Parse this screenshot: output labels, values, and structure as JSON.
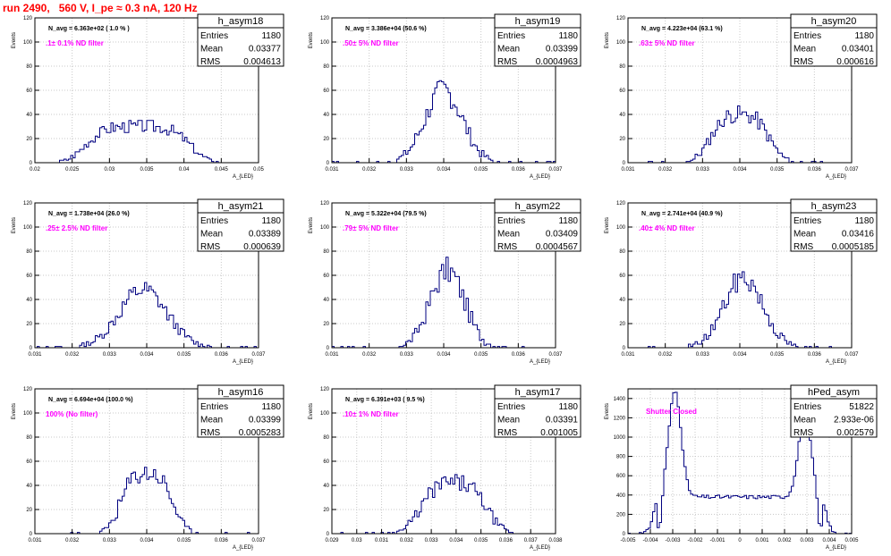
{
  "title": "run 2490,   560 V, I_pe ≈ 0.3 nA, 120 Hz",
  "colors": {
    "title": "#ff0000",
    "annotation": "#ff00ff",
    "histogram": "#000080",
    "grid": "#c8c8c8"
  },
  "stats_labels": {
    "entries": "Entries",
    "mean": "Mean",
    "rms": "RMS"
  },
  "chart_data": [
    {
      "type": "histogram",
      "name": "h_asym18",
      "navg": "N_avg = 6.363e+02 ( 1.0 % )",
      "filter": ".1± 0.1% ND filter",
      "entries": "1180",
      "mean": "0.03377",
      "rms": "0.004613",
      "xlabel": "A_{LED}",
      "ylabel": "Events",
      "xlim": [
        0.02,
        0.05
      ],
      "ylim": [
        0,
        120
      ],
      "xticks": [
        "0.02",
        "0.025",
        "0.03",
        "0.035",
        "0.04",
        "0.045",
        "0.05"
      ],
      "yticks": [
        "0",
        "20",
        "40",
        "60",
        "80",
        "100",
        "120"
      ],
      "bins": 100,
      "center": 0.0338,
      "sigma": 0.0046,
      "peak": 30,
      "shape": "flat",
      "seed": 3
    },
    {
      "type": "histogram",
      "name": "h_asym19",
      "navg": "N_avg = 3.386e+04 (50.6 %)",
      "filter": ".50± 5% ND filter",
      "entries": "1180",
      "mean": "0.03399",
      "rms": "0.0004963",
      "xlabel": "A_{LED}",
      "ylabel": "Events",
      "xlim": [
        0.031,
        0.037
      ],
      "ylim": [
        0,
        120
      ],
      "xticks": [
        "0.031",
        "0.032",
        "0.033",
        "0.034",
        "0.035",
        "0.036",
        "0.037"
      ],
      "yticks": [
        "0",
        "20",
        "40",
        "60",
        "80",
        "100",
        "120"
      ],
      "bins": 100,
      "center": 0.034,
      "sigma": 0.0005,
      "peak": 60,
      "shape": "gauss",
      "seed": 7
    },
    {
      "type": "histogram",
      "name": "h_asym20",
      "navg": "N_avg = 4.223e+04 (63.1 %)",
      "filter": ".63± 5% ND filter",
      "entries": "1180",
      "mean": "0.03401",
      "rms": "0.000616",
      "xlabel": "A_{LED}",
      "ylabel": "Events",
      "xlim": [
        0.031,
        0.037
      ],
      "ylim": [
        0,
        120
      ],
      "xticks": [
        "0.031",
        "0.032",
        "0.033",
        "0.034",
        "0.035",
        "0.036",
        "0.037"
      ],
      "yticks": [
        "0",
        "20",
        "40",
        "60",
        "80",
        "100",
        "120"
      ],
      "bins": 100,
      "center": 0.034,
      "sigma": 0.0006,
      "peak": 40,
      "shape": "flatish",
      "seed": 11
    },
    {
      "type": "histogram",
      "name": "h_asym21",
      "navg": "N_avg = 1.738e+04 (26.0 %)",
      "filter": ".25± 2.5% ND filter",
      "entries": "1180",
      "mean": "0.03389",
      "rms": "0.000639",
      "xlabel": "A_{LED}",
      "ylabel": "Events",
      "xlim": [
        0.031,
        0.037
      ],
      "ylim": [
        0,
        120
      ],
      "xticks": [
        "0.031",
        "0.032",
        "0.033",
        "0.034",
        "0.035",
        "0.036",
        "0.037"
      ],
      "yticks": [
        "0",
        "20",
        "40",
        "60",
        "80",
        "100",
        "120"
      ],
      "bins": 100,
      "center": 0.0339,
      "sigma": 0.00064,
      "peak": 48,
      "shape": "gauss",
      "seed": 13
    },
    {
      "type": "histogram",
      "name": "h_asym22",
      "navg": "N_avg = 5.322e+04 (79.5 %)",
      "filter": ".79± 5% ND filter",
      "entries": "1180",
      "mean": "0.03409",
      "rms": "0.0004567",
      "xlabel": "A_{LED}",
      "ylabel": "Events",
      "xlim": [
        0.031,
        0.037
      ],
      "ylim": [
        0,
        120
      ],
      "xticks": [
        "0.031",
        "0.032",
        "0.033",
        "0.034",
        "0.035",
        "0.036",
        "0.037"
      ],
      "yticks": [
        "0",
        "20",
        "40",
        "60",
        "80",
        "100",
        "120"
      ],
      "bins": 100,
      "center": 0.0341,
      "sigma": 0.00046,
      "peak": 64,
      "shape": "gauss",
      "seed": 17
    },
    {
      "type": "histogram",
      "name": "h_asym23",
      "navg": "N_avg = 2.741e+04 (40.9 %)",
      "filter": ".40± 4% ND filter",
      "entries": "1180",
      "mean": "0.03416",
      "rms": "0.0005185",
      "xlabel": "A_{LED}",
      "ylabel": "Events",
      "xlim": [
        0.031,
        0.037
      ],
      "ylim": [
        0,
        120
      ],
      "xticks": [
        "0.031",
        "0.032",
        "0.033",
        "0.034",
        "0.035",
        "0.036",
        "0.037"
      ],
      "yticks": [
        "0",
        "20",
        "40",
        "60",
        "80",
        "100",
        "120"
      ],
      "bins": 100,
      "center": 0.0341,
      "sigma": 0.00052,
      "peak": 58,
      "shape": "gauss",
      "seed": 19
    },
    {
      "type": "histogram",
      "name": "h_asym16",
      "navg": "N_avg = 6.694e+04 (100.0 %)",
      "filter": "100% (No filter)",
      "entries": "1180",
      "mean": "0.03399",
      "rms": "0.0005283",
      "xlabel": "A_{LED}",
      "ylabel": "Events",
      "xlim": [
        0.031,
        0.037
      ],
      "ylim": [
        0,
        120
      ],
      "xticks": [
        "0.031",
        "0.032",
        "0.033",
        "0.034",
        "0.035",
        "0.036",
        "0.037"
      ],
      "yticks": [
        "0",
        "20",
        "40",
        "60",
        "80",
        "100",
        "120"
      ],
      "bins": 100,
      "center": 0.034,
      "sigma": 0.00053,
      "peak": 50,
      "shape": "flatish",
      "seed": 23
    },
    {
      "type": "histogram",
      "name": "h_asym17",
      "navg": "N_avg = 6.391e+03 ( 9.5 %)",
      "filter": ".10± 1% ND filter",
      "entries": "1180",
      "mean": "0.03391",
      "rms": "0.001005",
      "xlabel": "A_{LED}",
      "ylabel": "Events",
      "xlim": [
        0.029,
        0.038
      ],
      "ylim": [
        0,
        120
      ],
      "xticks": [
        "0.029",
        "0.03",
        "0.031",
        "0.032",
        "0.033",
        "0.034",
        "0.035",
        "0.036",
        "0.037",
        "0.038"
      ],
      "yticks": [
        "0",
        "20",
        "40",
        "60",
        "80",
        "100",
        "120"
      ],
      "bins": 100,
      "center": 0.0339,
      "sigma": 0.001,
      "peak": 42,
      "shape": "flatish",
      "seed": 29
    },
    {
      "type": "histogram",
      "name": "hPed_asym",
      "navg": "",
      "filter": "Shutter Closed",
      "entries": "51822",
      "mean": "2.933e-06",
      "rms": "0.002579",
      "xlabel": "A_{LED}",
      "ylabel": "Events",
      "xlim": [
        -0.005,
        0.005
      ],
      "ylim": [
        0,
        1500
      ],
      "xticks": [
        "-0.005",
        "-0.004",
        "-0.003",
        "-0.002",
        "-0.001",
        "0",
        "0.001",
        "0.002",
        "0.003",
        "0.004",
        "0.005"
      ],
      "yticks": [
        "0",
        "200",
        "400",
        "600",
        "800",
        "1000",
        "1200",
        "1400"
      ],
      "bins": 100,
      "center": 0.0,
      "sigma": 0.0033,
      "peak": 1500,
      "shape": "ped",
      "seed": 31
    }
  ]
}
